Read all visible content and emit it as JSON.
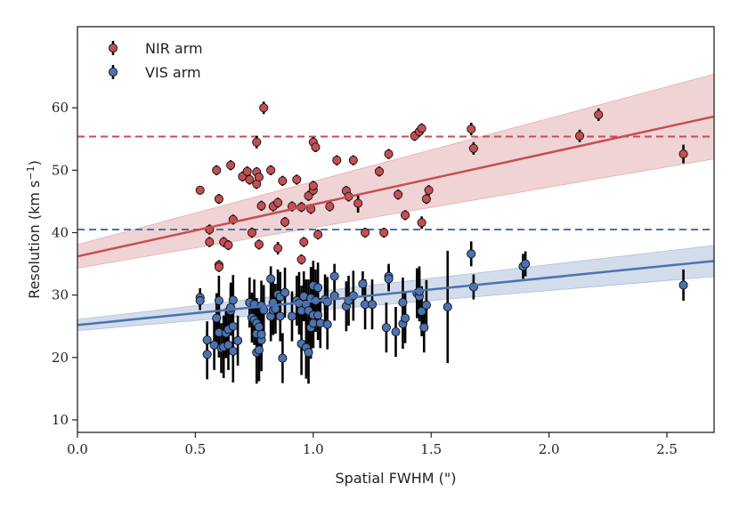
{
  "chart_data": {
    "type": "scatter",
    "title": "",
    "xlabel": "Spatial FWHM (\")",
    "ylabel": "Resolution (km s",
    "ylabel_sup": "−1",
    "ylabel_close": ")",
    "xlim": [
      0.0,
      2.7
    ],
    "ylim": [
      8,
      73
    ],
    "xticks": [
      "0.0",
      "0.5",
      "1.0",
      "1.5",
      "2.0",
      "2.5"
    ],
    "yticks": [
      "10",
      "20",
      "30",
      "40",
      "50",
      "60"
    ],
    "grid": false,
    "legend_position": "top-left",
    "series": [
      {
        "name": "NIR arm",
        "color": "#c44e52",
        "fit": {
          "intercept": 36.2,
          "slope": 8.3,
          "band_halfwidth_x0": 1.9,
          "band_halfwidth_x27": 6.8
        },
        "reference_line": 55.4,
        "points": [
          [
            0.52,
            46.8,
            0.6
          ],
          [
            0.56,
            40.5,
            0.8
          ],
          [
            0.56,
            38.5,
            0.8
          ],
          [
            0.59,
            50.0,
            0.8
          ],
          [
            0.6,
            34.8,
            0.8
          ],
          [
            0.6,
            34.5,
            0.8
          ],
          [
            0.6,
            45.4,
            0.8
          ],
          [
            0.62,
            38.5,
            0.8
          ],
          [
            0.64,
            38.0,
            0.8
          ],
          [
            0.65,
            50.8,
            0.8
          ],
          [
            0.66,
            42.1,
            0.8
          ],
          [
            0.7,
            49.0,
            0.8
          ],
          [
            0.72,
            49.8,
            0.8
          ],
          [
            0.73,
            48.5,
            0.8
          ],
          [
            0.74,
            40.0,
            0.8
          ],
          [
            0.76,
            49.7,
            0.8
          ],
          [
            0.76,
            47.8,
            0.8
          ],
          [
            0.76,
            54.5,
            1.0
          ],
          [
            0.77,
            38.1,
            0.8
          ],
          [
            0.77,
            48.9,
            0.8
          ],
          [
            0.78,
            44.3,
            0.8
          ],
          [
            0.79,
            60.0,
            1.0
          ],
          [
            0.82,
            50.0,
            0.8
          ],
          [
            0.83,
            44.2,
            0.8
          ],
          [
            0.85,
            37.5,
            1.0
          ],
          [
            0.85,
            44.8,
            0.8
          ],
          [
            0.87,
            48.3,
            0.8
          ],
          [
            0.88,
            41.7,
            0.8
          ],
          [
            0.91,
            44.2,
            0.8
          ],
          [
            0.93,
            48.5,
            0.8
          ],
          [
            0.95,
            35.7,
            0.8
          ],
          [
            0.95,
            44.1,
            0.8
          ],
          [
            0.96,
            38.5,
            0.8
          ],
          [
            0.98,
            45.9,
            0.8
          ],
          [
            0.99,
            43.8,
            0.8
          ],
          [
            1.0,
            46.8,
            0.8
          ],
          [
            1.0,
            47.5,
            0.8
          ],
          [
            1.0,
            54.5,
            0.8
          ],
          [
            1.01,
            53.7,
            0.8
          ],
          [
            1.02,
            39.7,
            0.8
          ],
          [
            1.07,
            44.2,
            0.8
          ],
          [
            1.1,
            51.6,
            0.8
          ],
          [
            1.14,
            46.7,
            0.8
          ],
          [
            1.15,
            45.8,
            0.8
          ],
          [
            1.17,
            51.6,
            0.8
          ],
          [
            1.19,
            44.7,
            1.5
          ],
          [
            1.22,
            40.0,
            0.8
          ],
          [
            1.28,
            49.8,
            0.8
          ],
          [
            1.3,
            40.0,
            0.8
          ],
          [
            1.32,
            52.6,
            0.8
          ],
          [
            1.36,
            46.1,
            0.8
          ],
          [
            1.39,
            42.8,
            0.8
          ],
          [
            1.43,
            55.5,
            0.8
          ],
          [
            1.45,
            56.2,
            0.8
          ],
          [
            1.46,
            56.7,
            0.8
          ],
          [
            1.46,
            41.6,
            1.0
          ],
          [
            1.48,
            45.4,
            0.8
          ],
          [
            1.49,
            46.8,
            0.8
          ],
          [
            1.67,
            56.6,
            1.0
          ],
          [
            1.68,
            53.5,
            1.0
          ],
          [
            2.13,
            55.5,
            1.0
          ],
          [
            2.21,
            58.9,
            1.0
          ],
          [
            2.57,
            52.6,
            1.5
          ]
        ]
      },
      {
        "name": "VIS arm",
        "color": "#4c72b0",
        "fit": {
          "intercept": 25.2,
          "slope": 3.8,
          "band_halfwidth_x0": 0.9,
          "band_halfwidth_x27": 2.5
        },
        "reference_line": 40.5,
        "points": [
          [
            0.52,
            29.6,
            1.5
          ],
          [
            0.52,
            29.1,
            1.5
          ],
          [
            0.55,
            20.5,
            4.0
          ],
          [
            0.55,
            22.8,
            3.0
          ],
          [
            0.58,
            22.0,
            4.0
          ],
          [
            0.59,
            26.3,
            4.0
          ],
          [
            0.6,
            29.1,
            4.0
          ],
          [
            0.6,
            24.0,
            4.0
          ],
          [
            0.61,
            21.5,
            4.0
          ],
          [
            0.62,
            21.7,
            5.0
          ],
          [
            0.63,
            23.9,
            4.0
          ],
          [
            0.64,
            22.0,
            4.0
          ],
          [
            0.64,
            24.5,
            4.0
          ],
          [
            0.65,
            27.5,
            4.0
          ],
          [
            0.65,
            28.0,
            4.0
          ],
          [
            0.66,
            29.2,
            4.0
          ],
          [
            0.66,
            21.0,
            5.0
          ],
          [
            0.66,
            25.0,
            4.0
          ],
          [
            0.68,
            22.7,
            4.0
          ],
          [
            0.73,
            28.8,
            4.0
          ],
          [
            0.74,
            26.4,
            4.0
          ],
          [
            0.75,
            28.5,
            4.0
          ],
          [
            0.75,
            26.0,
            4.0
          ],
          [
            0.76,
            25.5,
            4.0
          ],
          [
            0.76,
            23.8,
            4.0
          ],
          [
            0.76,
            20.8,
            5.0
          ],
          [
            0.77,
            21.2,
            5.0
          ],
          [
            0.77,
            24.9,
            4.0
          ],
          [
            0.78,
            22.8,
            5.0
          ],
          [
            0.78,
            23.7,
            4.0
          ],
          [
            0.78,
            28.3,
            4.0
          ],
          [
            0.79,
            27.6,
            4.0
          ],
          [
            0.82,
            26.6,
            4.0
          ],
          [
            0.82,
            32.6,
            2.0
          ],
          [
            0.83,
            28.8,
            4.0
          ],
          [
            0.83,
            27.6,
            4.0
          ],
          [
            0.84,
            27.8,
            4.0
          ],
          [
            0.85,
            30.1,
            4.0
          ],
          [
            0.86,
            29.7,
            4.0
          ],
          [
            0.86,
            26.6,
            4.0
          ],
          [
            0.87,
            19.9,
            4.0
          ],
          [
            0.88,
            30.4,
            4.0
          ],
          [
            0.91,
            26.6,
            4.0
          ],
          [
            0.93,
            29.1,
            4.0
          ],
          [
            0.94,
            28.7,
            5.0
          ],
          [
            0.95,
            22.2,
            5.0
          ],
          [
            0.95,
            27.5,
            4.0
          ],
          [
            0.96,
            29.8,
            4.0
          ],
          [
            0.97,
            21.6,
            5.0
          ],
          [
            0.97,
            28.5,
            4.0
          ],
          [
            0.98,
            20.8,
            5.0
          ],
          [
            0.98,
            27.5,
            5.0
          ],
          [
            0.99,
            24.8,
            5.0
          ],
          [
            0.99,
            29.5,
            5.0
          ],
          [
            1.0,
            26.8,
            5.0
          ],
          [
            1.0,
            31.5,
            4.0
          ],
          [
            1.0,
            25.5,
            4.0
          ],
          [
            1.01,
            29.1,
            5.0
          ],
          [
            1.02,
            26.8,
            4.0
          ],
          [
            1.02,
            31.2,
            4.0
          ],
          [
            1.03,
            25.5,
            4.0
          ],
          [
            1.05,
            29.3,
            4.0
          ],
          [
            1.06,
            28.9,
            4.0
          ],
          [
            1.06,
            25.3,
            4.0
          ],
          [
            1.09,
            33.0,
            2.0
          ],
          [
            1.09,
            29.9,
            4.0
          ],
          [
            1.14,
            28.2,
            4.0
          ],
          [
            1.15,
            29.1,
            4.0
          ],
          [
            1.17,
            29.9,
            4.0
          ],
          [
            1.21,
            31.8,
            2.0
          ],
          [
            1.22,
            28.5,
            4.0
          ],
          [
            1.25,
            28.5,
            4.0
          ],
          [
            1.31,
            24.8,
            4.0
          ],
          [
            1.32,
            33.0,
            2.0
          ],
          [
            1.32,
            32.6,
            2.0
          ],
          [
            1.35,
            24.1,
            4.0
          ],
          [
            1.38,
            28.8,
            4.0
          ],
          [
            1.38,
            25.4,
            4.0
          ],
          [
            1.39,
            26.3,
            4.0
          ],
          [
            1.44,
            30.3,
            4.0
          ],
          [
            1.45,
            29.8,
            4.0
          ],
          [
            1.45,
            30.6,
            4.0
          ],
          [
            1.46,
            27.4,
            4.0
          ],
          [
            1.47,
            24.8,
            4.0
          ],
          [
            1.48,
            28.4,
            4.0
          ],
          [
            1.57,
            28.1,
            9.0
          ],
          [
            1.67,
            36.6,
            2.0
          ],
          [
            1.68,
            31.3,
            2.0
          ],
          [
            1.89,
            34.6,
            2.0
          ],
          [
            1.9,
            35.0,
            2.0
          ],
          [
            2.57,
            31.6,
            2.5
          ]
        ]
      }
    ]
  }
}
